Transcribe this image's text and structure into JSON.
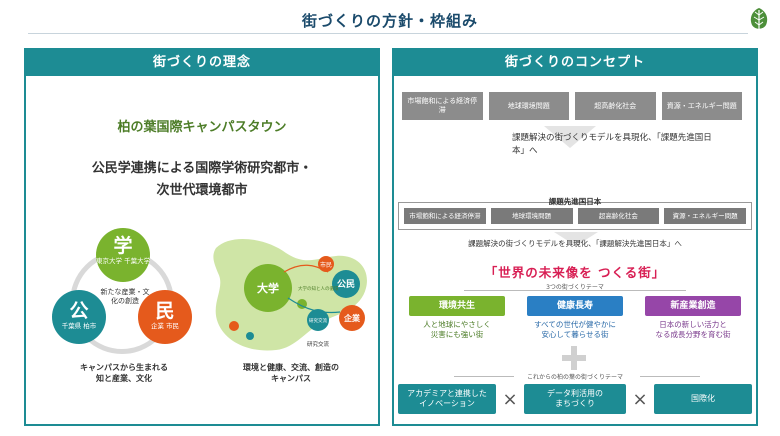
{
  "page": {
    "title": "街づくりの方針・枠組み",
    "logo_icon": "leaf-icon"
  },
  "left": {
    "header": "街づくりの理念",
    "subtitle": "柏の葉国際キャンパスタウン",
    "main_line1": "公民学連携による国際学術研究都市・",
    "main_line2": "次世代環境都市",
    "venn": {
      "gaku": {
        "char": "学",
        "caption": "東京大学 千葉大学"
      },
      "kou": {
        "char": "公",
        "caption": "千葉県 柏市"
      },
      "min": {
        "char": "民",
        "caption": "企業 市民"
      },
      "center": "新たな産業・文化の創造",
      "caption_line1": "キャンパスから生まれる",
      "caption_line2": "知と産業、文化"
    },
    "campus": {
      "univ": "大学",
      "ko": "公民",
      "kigyo": "企業",
      "shimin": "市民",
      "label_a": "大学の知と人の循環",
      "label_b": "研究交流",
      "label_c": "研究交流",
      "caption_line1": "環境と健康、交流、創造の",
      "caption_line2": "キャンパス"
    }
  },
  "right": {
    "header": "街づくりのコンセプト",
    "issues_top": [
      "市場飽和による経済停滞",
      "地球環境問題",
      "超高齢化社会",
      "資源・エネルギー問題"
    ],
    "flow_text_1": "課題解決の街づくりモデルを具現化、「課題先進国日本」へ",
    "kadai_label": "課題先進国日本",
    "issues_mid": [
      "市場飽和による経済停滞",
      "地球環境問題",
      "超高齢化社会",
      "資源・エネルギー問題"
    ],
    "flow_text_2": "課題解決の街づくりモデルを具現化、「課題解決先進国日本」へ",
    "headline": "「世界の未来像を つくる街」",
    "theme_label": "3つの街づくりテーマ",
    "themes": [
      {
        "title": "環境共生",
        "desc_line1": "人と地球にやさしく",
        "desc_line2": "災害にも強い街"
      },
      {
        "title": "健康長寿",
        "desc_line1": "すべての世代が健やかに",
        "desc_line2": "安心して暮らせる街"
      },
      {
        "title": "新産業創造",
        "desc_line1": "日本の新しい活力と",
        "desc_line2": "なる成長分野を育む街"
      }
    ],
    "town_label": "これからの柏の葉の街づくりテーマ",
    "town_boxes": [
      {
        "line1": "アカデミアと連携した",
        "line2": "イノベーション"
      },
      {
        "line1": "データ利活用の",
        "line2": "まちづくり"
      },
      {
        "line1": "国際化",
        "line2": ""
      }
    ],
    "times_symbol": "×"
  },
  "colors": {
    "teal": "#1d8c94",
    "green": "#7ab32e",
    "orange": "#e55a1c",
    "blue": "#2a7fc4",
    "purple": "#9646a8",
    "pink": "#d81f54"
  }
}
